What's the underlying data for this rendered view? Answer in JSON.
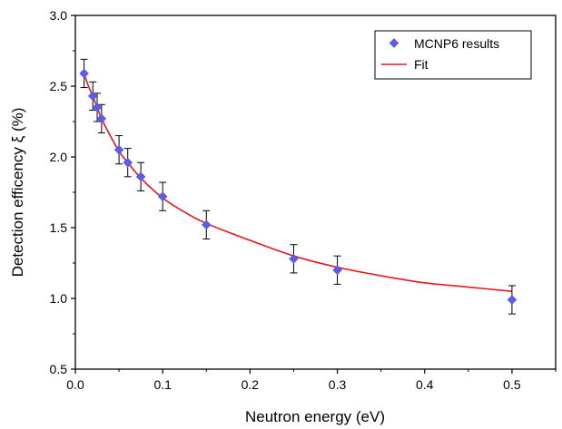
{
  "chart_data": {
    "type": "scatter",
    "xlabel": "Neutron energy (eV)",
    "ylabel": "Detection efficency ξ (%)",
    "xlim": [
      0.0,
      0.55
    ],
    "ylim": [
      0.5,
      3.0
    ],
    "x_ticks": [
      "0.0",
      "0.1",
      "0.2",
      "0.3",
      "0.4",
      "0.5"
    ],
    "y_ticks": [
      "0.5",
      "1.0",
      "1.5",
      "2.0",
      "2.5",
      "3.0"
    ],
    "grid": false,
    "legend_position": "top-right",
    "series": [
      {
        "name": "MCNP6 results",
        "kind": "scatter-with-error-bars",
        "marker": "diamond",
        "color": "#5b5bf0",
        "x": [
          0.01,
          0.02,
          0.025,
          0.03,
          0.05,
          0.06,
          0.075,
          0.1,
          0.15,
          0.25,
          0.3,
          0.5
        ],
        "y": [
          2.59,
          2.43,
          2.35,
          2.27,
          2.05,
          1.96,
          1.86,
          1.72,
          1.52,
          1.28,
          1.2,
          0.99
        ],
        "yerr": [
          0.1,
          0.1,
          0.1,
          0.1,
          0.1,
          0.1,
          0.1,
          0.1,
          0.1,
          0.1,
          0.1,
          0.1
        ]
      },
      {
        "name": "Fit",
        "kind": "line",
        "color": "#e8141e",
        "x": [
          0.01,
          0.015,
          0.02,
          0.025,
          0.03,
          0.04,
          0.05,
          0.06,
          0.075,
          0.1,
          0.125,
          0.15,
          0.2,
          0.25,
          0.3,
          0.35,
          0.4,
          0.45,
          0.5
        ],
        "y": [
          2.59,
          2.5,
          2.43,
          2.35,
          2.27,
          2.15,
          2.04,
          1.96,
          1.85,
          1.71,
          1.61,
          1.53,
          1.41,
          1.3,
          1.22,
          1.16,
          1.11,
          1.08,
          1.05
        ]
      }
    ]
  }
}
